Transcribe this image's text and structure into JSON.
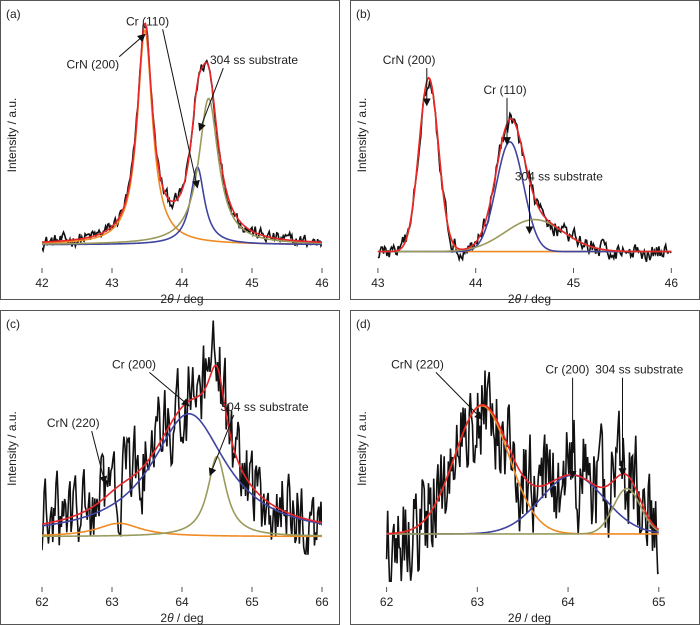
{
  "colors": {
    "measured": "#111111",
    "sum_fit": "#e8262a",
    "crn": "#f08a24",
    "cr": "#3f44a0",
    "substrate": "#9a9a5c"
  },
  "chart_data": [
    {
      "id": "a",
      "type": "line",
      "panel_label": "(a)",
      "xlabel_prefix": "2",
      "xlabel_theta": "θ",
      "xlabel_suffix": " / deg",
      "ylabel": "Intensity / a.u.",
      "xlim": [
        42,
        46
      ],
      "xticks": [
        42,
        43,
        44,
        45,
        46
      ],
      "ylim": [
        0,
        1.12
      ],
      "baseline": 0.08,
      "noise": 0.012,
      "annotations": [
        {
          "text": "CrN (200)",
          "label_x": 42.35,
          "label_y": 0.85,
          "arrow_to": [
            43.47,
            1.0
          ]
        },
        {
          "text": "Cr (110)",
          "label_x": 43.2,
          "label_y": 1.04,
          "arrow_to": [
            44.22,
            0.33
          ]
        },
        {
          "text": "304 ss substrate",
          "label_x": 44.4,
          "label_y": 0.87,
          "arrow_to": [
            44.25,
            0.58
          ]
        }
      ],
      "components": [
        {
          "name": "CrN (200)",
          "color_key": "crn",
          "center": 43.47,
          "width": 0.13,
          "height": 0.94,
          "shape": "lorentz",
          "range": [
            42,
            46
          ]
        },
        {
          "name": "Cr (110)",
          "color_key": "cr",
          "center": 44.22,
          "width": 0.12,
          "height": 0.34,
          "shape": "lorentz",
          "range": [
            42,
            46
          ]
        },
        {
          "name": "304 ss substrate",
          "color_key": "substrate",
          "center": 44.38,
          "width": 0.17,
          "height": 0.64,
          "shape": "lorentz",
          "range": [
            42,
            46
          ]
        }
      ]
    },
    {
      "id": "b",
      "type": "line",
      "panel_label": "(b)",
      "xlabel_prefix": "2",
      "xlabel_theta": "θ",
      "xlabel_suffix": " / deg",
      "ylabel": "Intensity / a.u.",
      "xlim": [
        42.95,
        46.15
      ],
      "xticks": [
        43,
        44,
        45,
        46
      ],
      "ylim": [
        0,
        1.12
      ],
      "baseline": 0.05,
      "noise": 0.015,
      "annotations": [
        {
          "text": "CrN (200)",
          "label_x": 43.05,
          "label_y": 0.87,
          "arrow_to": [
            43.5,
            0.69
          ]
        },
        {
          "text": "Cr (110)",
          "label_x": 44.08,
          "label_y": 0.74,
          "arrow_to": [
            44.32,
            0.52
          ]
        },
        {
          "text": "304 ss substrate",
          "label_x": 44.4,
          "label_y": 0.36,
          "arrow_to": [
            44.55,
            0.13
          ]
        }
      ],
      "components": [
        {
          "name": "CrN (200)",
          "color_key": "crn",
          "center": 43.52,
          "width": 0.1,
          "height": 0.76,
          "shape": "gauss",
          "range": [
            43,
            46
          ]
        },
        {
          "name": "Cr (110)",
          "color_key": "cr",
          "center": 44.35,
          "width": 0.14,
          "height": 0.48,
          "shape": "gauss",
          "range": [
            43,
            46
          ]
        },
        {
          "name": "304 ss substrate",
          "color_key": "substrate",
          "center": 44.6,
          "width": 0.3,
          "height": 0.14,
          "shape": "gauss",
          "range": [
            43,
            46
          ]
        }
      ]
    },
    {
      "id": "c",
      "type": "line",
      "panel_label": "(c)",
      "xlabel_prefix": "2",
      "xlabel_theta": "θ",
      "xlabel_suffix": " / deg",
      "ylabel": "Intensity / a.u.",
      "xlim": [
        62,
        66
      ],
      "xticks": [
        62,
        63,
        64,
        65,
        66
      ],
      "ylim": [
        0,
        1.0
      ],
      "baseline": 0.17,
      "noise": 0.065,
      "annotations": [
        {
          "text": "Cr (200)",
          "label_x": 63.0,
          "label_y": 0.8,
          "arrow_to": [
            64.1,
            0.66
          ]
        },
        {
          "text": "CrN (220)",
          "label_x": 62.07,
          "label_y": 0.58,
          "arrow_to": [
            62.9,
            0.37
          ]
        },
        {
          "text": "304 ss substrate",
          "label_x": 64.55,
          "label_y": 0.64,
          "arrow_to": [
            64.4,
            0.4
          ]
        }
      ],
      "components": [
        {
          "name": "CrN (220)",
          "color_key": "crn",
          "center": 63.1,
          "width": 0.38,
          "height": 0.05,
          "shape": "lorentz",
          "range": [
            62,
            66
          ]
        },
        {
          "name": "Cr (200)",
          "color_key": "cr",
          "center": 64.1,
          "width": 0.65,
          "height": 0.46,
          "shape": "lorentz",
          "range": [
            62,
            66
          ]
        },
        {
          "name": "304 ss substrate",
          "color_key": "substrate",
          "center": 64.5,
          "width": 0.16,
          "height": 0.3,
          "shape": "lorentz",
          "range": [
            62,
            66
          ]
        }
      ]
    },
    {
      "id": "d",
      "type": "line",
      "panel_label": "(d)",
      "xlabel_prefix": "2",
      "xlabel_theta": "θ",
      "xlabel_suffix": " / deg",
      "ylabel": "Intensity / a.u.",
      "xlim": [
        61.85,
        65.3
      ],
      "xticks": [
        62,
        63,
        64,
        65
      ],
      "ylim": [
        0,
        1.0
      ],
      "baseline": 0.18,
      "noise": 0.08,
      "annotations": [
        {
          "text": "CrN (220)",
          "label_x": 62.05,
          "label_y": 0.8,
          "arrow_to": [
            63.05,
            0.61
          ]
        },
        {
          "text": "Cr (200)",
          "label_x": 63.75,
          "label_y": 0.78,
          "arrow_to": [
            64.05,
            0.39
          ]
        },
        {
          "text": "304 ss substrate",
          "label_x": 64.3,
          "label_y": 0.78,
          "arrow_to": [
            64.6,
            0.4
          ]
        }
      ],
      "components": [
        {
          "name": "CrN (220)",
          "color_key": "crn",
          "center": 63.05,
          "width": 0.3,
          "height": 0.48,
          "shape": "gauss",
          "range": [
            62,
            65
          ]
        },
        {
          "name": "Cr (200)",
          "color_key": "cr",
          "center": 64.05,
          "width": 0.35,
          "height": 0.22,
          "shape": "gauss",
          "range": [
            62,
            65
          ]
        },
        {
          "name": "304 ss substrate",
          "color_key": "substrate",
          "center": 64.65,
          "width": 0.15,
          "height": 0.17,
          "shape": "gauss",
          "range": [
            62,
            65
          ]
        }
      ]
    }
  ]
}
